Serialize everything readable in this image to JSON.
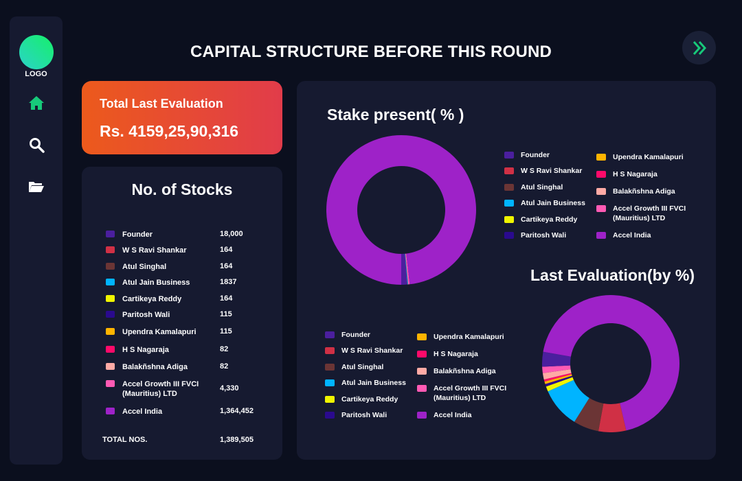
{
  "sidebar": {
    "logo_text": "LOGO",
    "items": [
      {
        "icon": "home-icon",
        "active": true
      },
      {
        "icon": "search-icon"
      },
      {
        "icon": "folder-icon"
      }
    ]
  },
  "header": {
    "title": "CAPITAL STRUCTURE BEFORE THIS ROUND",
    "next_icon": "double-chevron-right-icon"
  },
  "evaluation": {
    "label": "Total Last Evaluation",
    "value": "Rs.  4159,25,90,316"
  },
  "stocks": {
    "title": "No. of Stocks",
    "rows": [
      {
        "name": "Founder",
        "value": "18,000",
        "color": "#4b1f9e"
      },
      {
        "name": "W S Ravi Shankar",
        "value": "164",
        "color": "#d03045"
      },
      {
        "name": "Atul Singhal",
        "value": "164",
        "color": "#6b3535"
      },
      {
        "name": "Atul Jain Business",
        "value": "1837",
        "color": "#00b4ff"
      },
      {
        "name": "Cartikeya Reddy",
        "value": "164",
        "color": "#f0f500"
      },
      {
        "name": "Paritosh Wali",
        "value": "115",
        "color": "#2a0a8e"
      },
      {
        "name": "Upendra Kamalapuri",
        "value": "115",
        "color": "#ffb400"
      },
      {
        "name": "H S Nagaraja",
        "value": "82",
        "color": "#ff0a6a"
      },
      {
        "name": "Balakñshna Adiga",
        "value": "82",
        "color": "#ffaaa5"
      },
      {
        "name": "Accel Growth III FVCI\n(Mauritius) LTD",
        "value": "4,330",
        "color": "#ff5ab4"
      },
      {
        "name": "Accel India",
        "value": "1,364,452",
        "color": "#9e22c8"
      }
    ],
    "total_label": "TOTAL NOS.",
    "total_value": "1,389,505"
  },
  "chart_data": [
    {
      "type": "pie",
      "title": "Stake present( % )",
      "donut": true,
      "categories": [
        "Founder",
        "W S Ravi Shankar",
        "Atul Singhal",
        "Atul Jain Business",
        "Cartikeya Reddy",
        "Paritosh Wali",
        "Upendra Kamalapuri",
        "H S Nagaraja",
        "Balakñshna Adiga",
        "Accel Growth III FVCI (Mauritius) LTD",
        "Accel India"
      ],
      "values": [
        18000,
        164,
        164,
        1837,
        164,
        115,
        115,
        82,
        82,
        4330,
        1364452
      ],
      "legend": "right"
    },
    {
      "type": "pie",
      "title": "Last Evaluation(by %)",
      "donut": true,
      "categories": [
        "Founder",
        "W S Ravi Shankar",
        "Atul Singhal",
        "Atul Jain Business",
        "Cartikeya Reddy",
        "Paritosh Wali",
        "Upendra Kamalapuri",
        "H S Nagaraja",
        "Balakñshna Adiga",
        "Accel Growth III FVCI (Mauritius) LTD",
        "Accel India"
      ],
      "values": [
        3.5,
        6.5,
        6.0,
        9.5,
        1.2,
        0.6,
        0.6,
        0.5,
        1.5,
        1.5,
        68.6
      ],
      "legend": "left"
    }
  ]
}
